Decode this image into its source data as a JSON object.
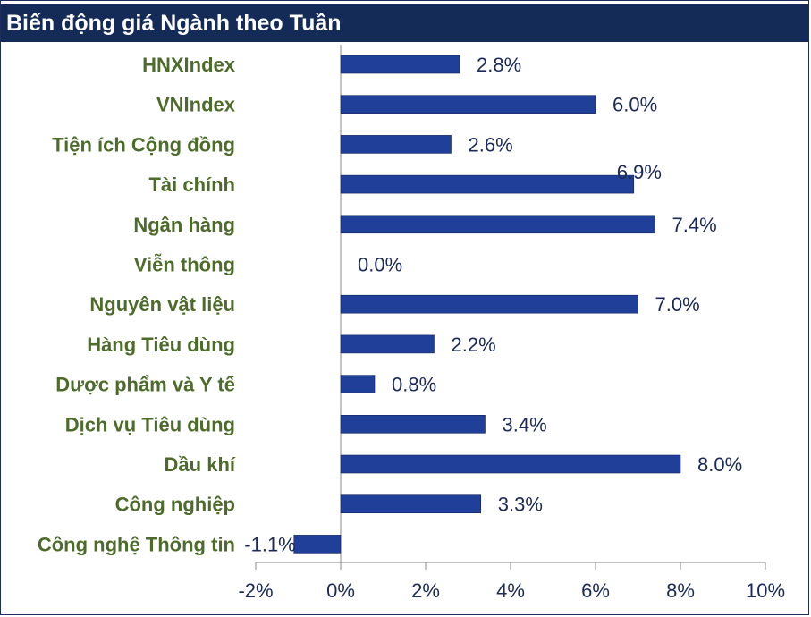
{
  "chart_data": {
    "type": "bar",
    "orientation": "horizontal",
    "title": "Biến động giá Ngành theo Tuần",
    "xlabel": "",
    "ylabel": "",
    "categories": [
      "HNXIndex",
      "VNIndex",
      "Tiện ích Cộng đồng",
      "Tài chính",
      "Ngân hàng",
      "Viễn thông",
      "Nguyên vật liệu",
      "Hàng Tiêu dùng",
      "Dược phẩm và Y tế",
      "Dịch vụ Tiêu dùng",
      "Dầu khí",
      "Công nghiệp",
      "Công nghệ Thông tin"
    ],
    "values": [
      2.8,
      6.0,
      2.6,
      6.9,
      7.4,
      0.0,
      7.0,
      2.2,
      0.8,
      3.4,
      8.0,
      3.3,
      -1.1
    ],
    "value_labels": [
      "2.8%",
      "6.0%",
      "2.6%",
      "6.9%",
      "7.4%",
      "0.0%",
      "7.0%",
      "2.2%",
      "0.8%",
      "3.4%",
      "8.0%",
      "3.3%",
      "-1.1%"
    ],
    "xlim": [
      -2,
      10
    ],
    "ticks": [
      -2,
      0,
      2,
      4,
      6,
      8,
      10
    ],
    "tick_labels": [
      "-2%",
      "0%",
      "2%",
      "4%",
      "6%",
      "8%",
      "10%"
    ],
    "grid": false,
    "legend": "none",
    "colors": {
      "bar": "#1f3f99",
      "title_bg": "#142a57",
      "title_text": "#ffffff",
      "category_text": "#4d6b2a",
      "value_text": "#1b2a57",
      "axis": "#8a8a8a"
    }
  }
}
